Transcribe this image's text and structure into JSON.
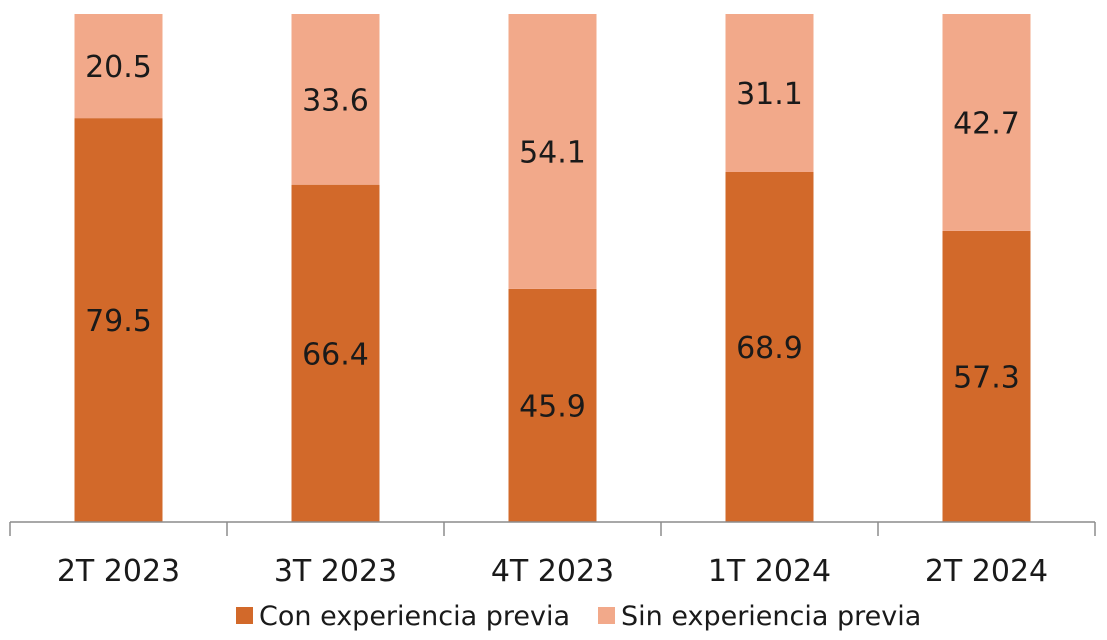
{
  "chart_data": {
    "type": "bar",
    "stacked": true,
    "categories": [
      "2T 2023",
      "3T 2023",
      "4T 2023",
      "1T 2024",
      "2T 2024"
    ],
    "series": [
      {
        "name": "Con experiencia previa",
        "values": [
          79.5,
          66.4,
          45.9,
          68.9,
          57.3
        ],
        "color": "#D2692A"
      },
      {
        "name": "Sin experiencia previa",
        "values": [
          20.5,
          33.6,
          54.1,
          31.1,
          42.7
        ],
        "color": "#F2A98A"
      }
    ],
    "ylim": [
      0,
      100
    ],
    "grid": false,
    "legend": "bottom"
  }
}
